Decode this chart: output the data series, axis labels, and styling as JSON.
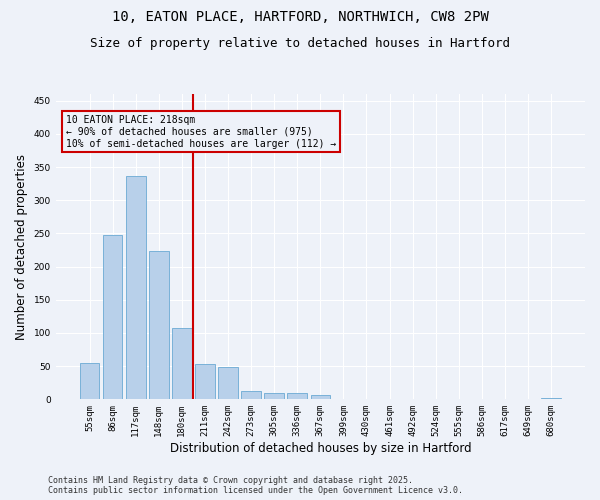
{
  "title_line1": "10, EATON PLACE, HARTFORD, NORTHWICH, CW8 2PW",
  "title_line2": "Size of property relative to detached houses in Hartford",
  "xlabel": "Distribution of detached houses by size in Hartford",
  "ylabel": "Number of detached properties",
  "categories": [
    "55sqm",
    "86sqm",
    "117sqm",
    "148sqm",
    "180sqm",
    "211sqm",
    "242sqm",
    "273sqm",
    "305sqm",
    "336sqm",
    "367sqm",
    "399sqm",
    "430sqm",
    "461sqm",
    "492sqm",
    "524sqm",
    "555sqm",
    "586sqm",
    "617sqm",
    "649sqm",
    "680sqm"
  ],
  "values": [
    55,
    247,
    337,
    224,
    108,
    53,
    49,
    12,
    10,
    9,
    6,
    0,
    1,
    0,
    0,
    0,
    0,
    0,
    0,
    0,
    2
  ],
  "bar_color": "#b8d0ea",
  "bar_edge_color": "#6aaad4",
  "vline_x": 4.5,
  "vline_color": "#cc0000",
  "annotation_text": "10 EATON PLACE: 218sqm\n← 90% of detached houses are smaller (975)\n10% of semi-detached houses are larger (112) →",
  "annotation_box_edgecolor": "#cc0000",
  "background_color": "#eef2f9",
  "ylim": [
    0,
    460
  ],
  "yticks": [
    0,
    50,
    100,
    150,
    200,
    250,
    300,
    350,
    400,
    450
  ],
  "footer_line1": "Contains HM Land Registry data © Crown copyright and database right 2025.",
  "footer_line2": "Contains public sector information licensed under the Open Government Licence v3.0.",
  "title_fontsize": 10,
  "subtitle_fontsize": 9,
  "axis_label_fontsize": 8.5,
  "tick_fontsize": 6.5,
  "annotation_fontsize": 7,
  "footer_fontsize": 6
}
